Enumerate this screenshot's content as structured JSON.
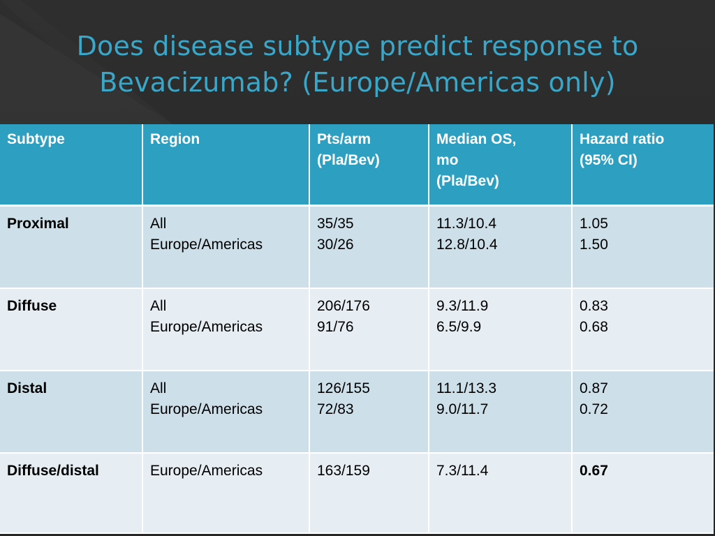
{
  "slide": {
    "title_line1": "Does disease subtype predict response to",
    "title_line2": "Bevacizumab? (Europe/Americas only)",
    "colors": {
      "background": "#2b2b2b",
      "title": "#3aa7c9",
      "header_fill": "#2d9fc0",
      "row_fill_dark": "#cddfe8",
      "row_fill_light": "#e6eef3"
    }
  },
  "table": {
    "headers": {
      "subtype": [
        "Subtype"
      ],
      "region": [
        "Region"
      ],
      "pts_arm": [
        "Pts/arm",
        "(Pla/Bev)"
      ],
      "median_os": [
        "Median OS,",
        "mo",
        "(Pla/Bev)"
      ],
      "hazard_ratio": [
        "Hazard ratio",
        "(95% CI)"
      ]
    },
    "rows": [
      {
        "subtype": "Proximal",
        "region": [
          "All",
          "Europe/Americas"
        ],
        "pts_arm": [
          "35/35",
          "30/26"
        ],
        "median_os": [
          "11.3/10.4",
          "12.8/10.4"
        ],
        "hazard_ratio": [
          "1.05",
          "1.50"
        ]
      },
      {
        "subtype": "Diffuse",
        "region": [
          "All",
          "Europe/Americas"
        ],
        "pts_arm": [
          "206/176",
          "91/76"
        ],
        "median_os": [
          "9.3/11.9",
          "6.5/9.9"
        ],
        "hazard_ratio": [
          "0.83",
          "0.68"
        ]
      },
      {
        "subtype": "Distal",
        "region": [
          "All",
          "Europe/Americas"
        ],
        "pts_arm": [
          "126/155",
          "72/83"
        ],
        "median_os": [
          "11.1/13.3",
          "9.0/11.7"
        ],
        "hazard_ratio": [
          "0.87",
          "0.72"
        ]
      },
      {
        "subtype": "Diffuse/distal",
        "region": [
          "Europe/Americas"
        ],
        "pts_arm": [
          "163/159"
        ],
        "median_os": [
          "7.3/11.4"
        ],
        "hazard_ratio": [
          "0.67"
        ]
      }
    ]
  }
}
